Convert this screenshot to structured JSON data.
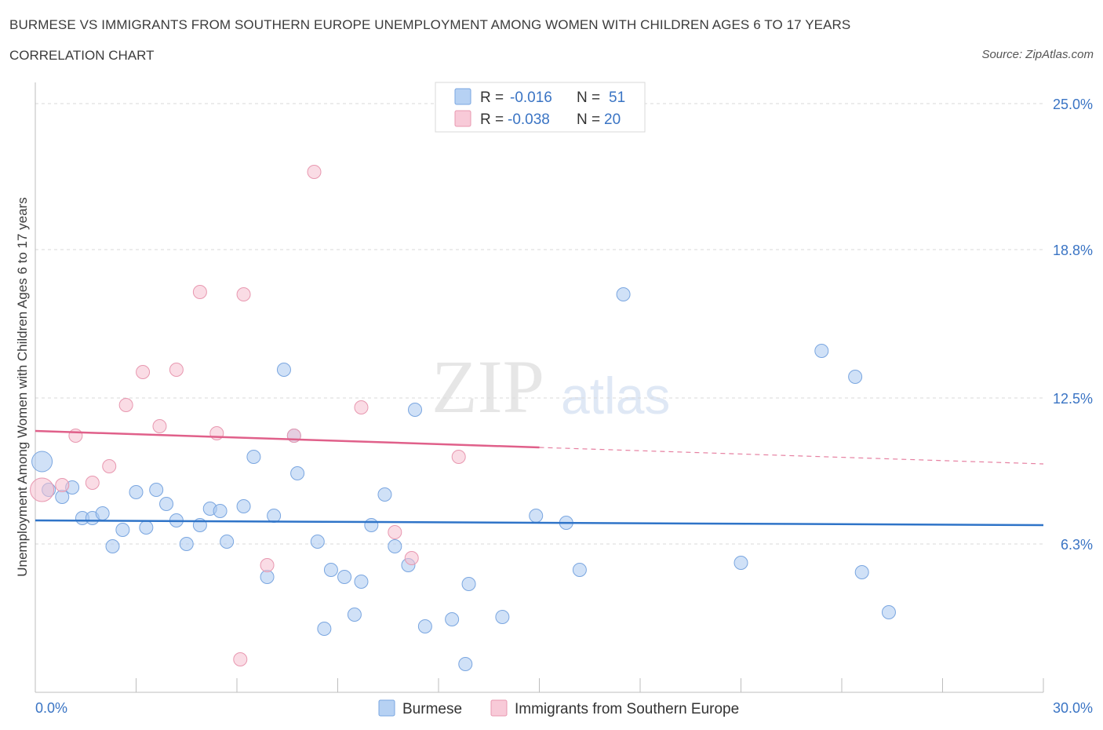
{
  "header": {
    "title": "BURMESE VS IMMIGRANTS FROM SOUTHERN EUROPE UNEMPLOYMENT AMONG WOMEN WITH CHILDREN AGES 6 TO 17 YEARS",
    "subtitle": "CORRELATION CHART",
    "source": "Source: ZipAtlas.com"
  },
  "watermark": {
    "zip": "ZIP",
    "atlas": "atlas"
  },
  "chart_data": {
    "type": "scatter",
    "title": "BURMESE VS IMMIGRANTS FROM SOUTHERN EUROPE UNEMPLOYMENT AMONG WOMEN WITH CHILDREN AGES 6 TO 17 YEARS",
    "subtitle": "CORRELATION CHART",
    "xlabel": "",
    "ylabel": "Unemployment Among Women with Children Ages 6 to 17 years",
    "xlim": [
      0,
      30
    ],
    "ylim": [
      0,
      25.5
    ],
    "x_tick_labels": {
      "min": "0.0%",
      "max": "30.0%"
    },
    "y_ticks": [
      {
        "value": 25.0,
        "label": "25.0%"
      },
      {
        "value": 18.8,
        "label": "18.8%"
      },
      {
        "value": 12.5,
        "label": "12.5%"
      },
      {
        "value": 6.3,
        "label": "6.3%"
      }
    ],
    "grid": true,
    "legend_position": "bottom-center",
    "stats_box": [
      {
        "r_label": "R =",
        "r_value": "-0.016",
        "n_label": "N =",
        "n_value": "51"
      },
      {
        "r_label": "R =",
        "r_value": "-0.038",
        "n_label": "N =",
        "n_value": "20"
      }
    ],
    "series": [
      {
        "name": "Burmese",
        "color": "#a9c8f0",
        "stroke": "#7aa6e0",
        "trend_color": "#2f74c8",
        "trend": {
          "x0": 0.0,
          "y0": 7.3,
          "x1": 30.0,
          "y1": 7.1
        },
        "points": [
          [
            0.2,
            9.8
          ],
          [
            0.4,
            8.6
          ],
          [
            0.8,
            8.3
          ],
          [
            1.1,
            8.7
          ],
          [
            1.4,
            7.4
          ],
          [
            1.7,
            7.4
          ],
          [
            2.0,
            7.6
          ],
          [
            2.3,
            6.2
          ],
          [
            2.6,
            6.9
          ],
          [
            3.0,
            8.5
          ],
          [
            3.3,
            7.0
          ],
          [
            3.6,
            8.6
          ],
          [
            3.9,
            8.0
          ],
          [
            4.2,
            7.3
          ],
          [
            4.5,
            6.3
          ],
          [
            4.9,
            7.1
          ],
          [
            5.2,
            7.8
          ],
          [
            5.5,
            7.7
          ],
          [
            5.7,
            6.4
          ],
          [
            6.2,
            7.9
          ],
          [
            6.5,
            10.0
          ],
          [
            6.9,
            4.9
          ],
          [
            7.1,
            7.5
          ],
          [
            7.4,
            13.7
          ],
          [
            7.7,
            10.9
          ],
          [
            7.8,
            9.3
          ],
          [
            8.4,
            6.4
          ],
          [
            8.6,
            2.7
          ],
          [
            8.8,
            5.2
          ],
          [
            9.2,
            4.9
          ],
          [
            9.5,
            3.3
          ],
          [
            9.7,
            4.7
          ],
          [
            10.0,
            7.1
          ],
          [
            10.4,
            8.4
          ],
          [
            10.7,
            6.2
          ],
          [
            11.1,
            5.4
          ],
          [
            11.3,
            12.0
          ],
          [
            11.6,
            2.8
          ],
          [
            12.4,
            3.1
          ],
          [
            12.8,
            1.2
          ],
          [
            12.9,
            4.6
          ],
          [
            13.9,
            3.2
          ],
          [
            14.9,
            7.5
          ],
          [
            15.8,
            7.2
          ],
          [
            16.2,
            5.2
          ],
          [
            17.5,
            16.9
          ],
          [
            21.0,
            5.5
          ],
          [
            23.4,
            14.5
          ],
          [
            24.4,
            13.4
          ],
          [
            24.6,
            5.1
          ],
          [
            25.4,
            3.4
          ]
        ]
      },
      {
        "name": "Immigrants from Southern Europe",
        "color": "#f5c0d0",
        "stroke": "#e898b0",
        "trend_color": "#e0608a",
        "trend": {
          "x0": 0.0,
          "y0": 11.1,
          "x1": 15.0,
          "y1": 10.4,
          "dash_to_x": 30.0,
          "dash_to_y": 9.7
        },
        "points": [
          [
            0.2,
            8.6
          ],
          [
            0.8,
            8.8
          ],
          [
            1.2,
            10.9
          ],
          [
            1.7,
            8.9
          ],
          [
            2.2,
            9.6
          ],
          [
            2.7,
            12.2
          ],
          [
            3.2,
            13.6
          ],
          [
            3.7,
            11.3
          ],
          [
            4.2,
            13.7
          ],
          [
            4.9,
            17.0
          ],
          [
            5.4,
            11.0
          ],
          [
            6.2,
            16.9
          ],
          [
            6.1,
            1.4
          ],
          [
            6.9,
            5.4
          ],
          [
            7.7,
            10.9
          ],
          [
            8.3,
            22.1
          ],
          [
            9.7,
            12.1
          ],
          [
            10.7,
            6.8
          ],
          [
            11.2,
            5.7
          ],
          [
            12.6,
            10.0
          ]
        ]
      }
    ]
  }
}
